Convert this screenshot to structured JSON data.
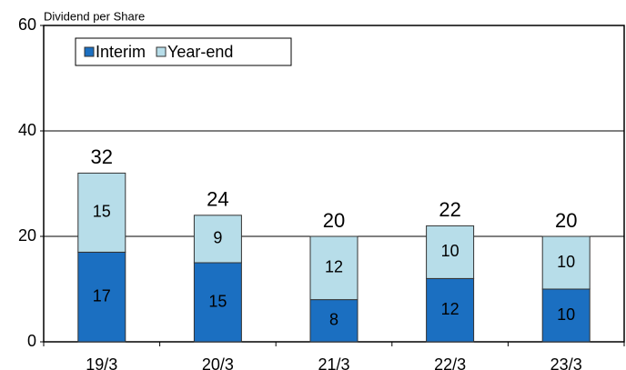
{
  "chart_data": {
    "type": "stacked_bar",
    "axis_label": "Dividend per Share",
    "categories": [
      "19/3",
      "20/3",
      "21/3",
      "22/3",
      "23/3"
    ],
    "series": [
      {
        "name": "Interim",
        "color": "#1b6fc1",
        "values": [
          17,
          15,
          8,
          12,
          10
        ]
      },
      {
        "name": "Year-end",
        "color": "#b7dde9",
        "values": [
          15,
          9,
          12,
          10,
          10
        ]
      }
    ],
    "totals": [
      32,
      24,
      20,
      22,
      20
    ],
    "ylim": [
      0,
      60
    ],
    "yticks": [
      0,
      20,
      40,
      60
    ],
    "grid": true,
    "legend": "top-left"
  }
}
